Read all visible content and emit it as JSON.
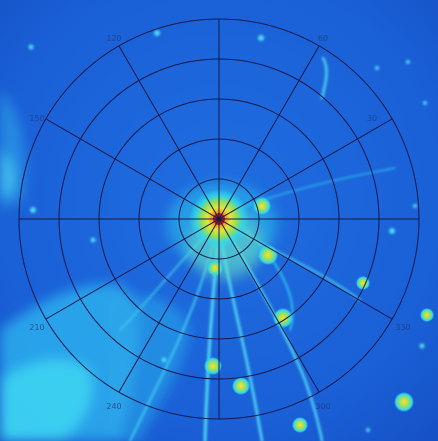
{
  "image": {
    "kind": "false-color polar plot",
    "colormap": "jet",
    "colors": {
      "background": "#1a5fd6",
      "deep_blue": "#1246b8",
      "cyan": "#2fd7ef",
      "green_yellow": "#d8ec3a",
      "orange": "#f08a1c",
      "red": "#d9231c",
      "grid": "#15184a"
    }
  },
  "polar_grid": {
    "rings": 5,
    "spokes_deg": [
      0,
      30,
      60,
      90,
      120,
      150,
      180,
      210,
      240,
      270,
      300,
      330
    ]
  },
  "angle_labels": {
    "deg_30": "30",
    "deg_60": "60",
    "deg_120": "120",
    "deg_150": "150",
    "deg_210": "210",
    "deg_240": "240",
    "deg_300": "300",
    "deg_330": "330"
  }
}
